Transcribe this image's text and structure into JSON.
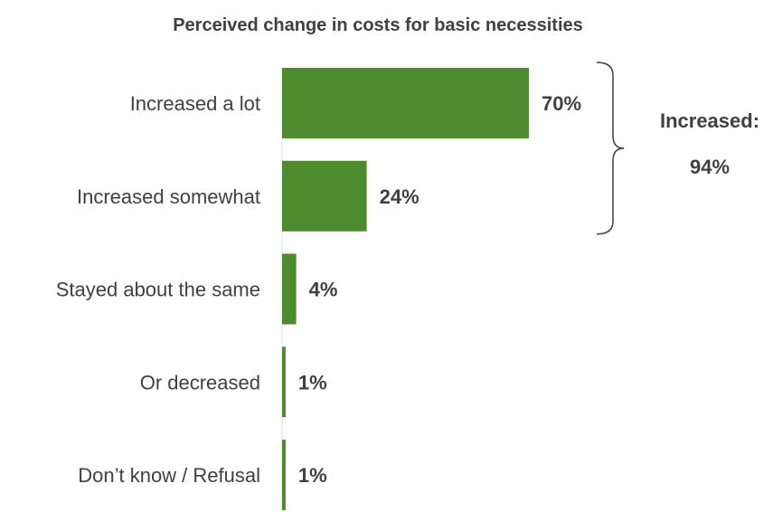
{
  "chart_data": {
    "type": "bar",
    "orientation": "horizontal",
    "title": "Perceived change in costs for basic necessities",
    "categories": [
      "Increased a lot",
      "Increased somewhat",
      "Stayed about the same",
      "Or decreased",
      "Don’t know / Refusal"
    ],
    "values": [
      70,
      24,
      4,
      1,
      1
    ],
    "value_labels": [
      "70%",
      "24%",
      "4%",
      "1%",
      "1%"
    ],
    "xlim": [
      0,
      100
    ],
    "bar_color": "#4e8a2e",
    "text_color": "#404040",
    "grid": false,
    "legend": "none",
    "bracket": {
      "groups": [
        "Increased a lot",
        "Increased somewhat"
      ],
      "label_line1": "Increased:",
      "label_line2": "94%"
    }
  }
}
